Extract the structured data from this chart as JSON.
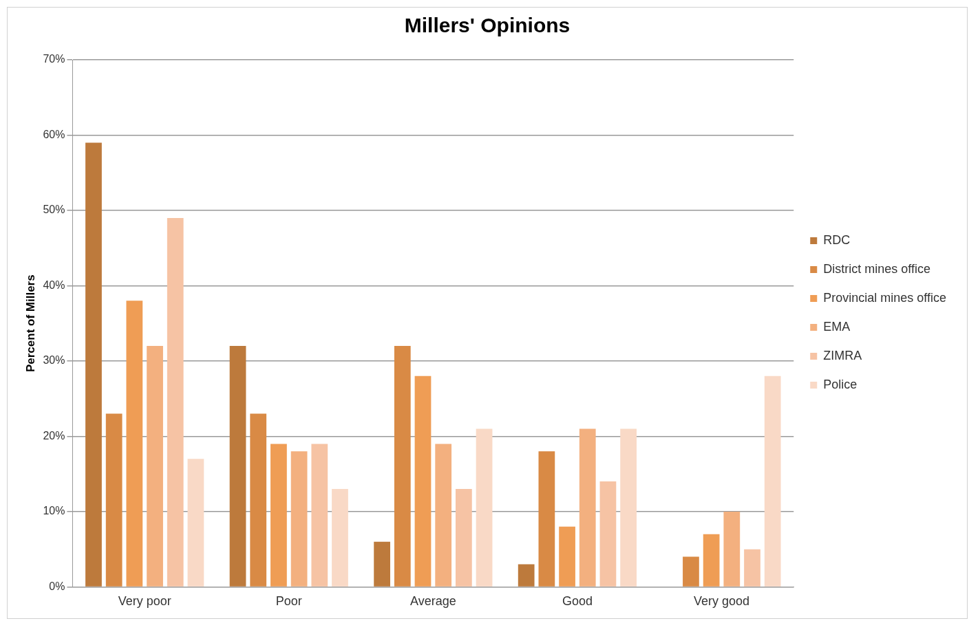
{
  "chart_data": {
    "type": "bar",
    "title": "Millers' Opinions",
    "ylabel": "Percent of Millers",
    "categories": [
      "Very poor",
      "Poor",
      "Average",
      "Good",
      "Very good"
    ],
    "series": [
      {
        "name": "RDC",
        "color": "#bd7a3c",
        "values": [
          59,
          32,
          6,
          3,
          0
        ]
      },
      {
        "name": "District mines office",
        "color": "#d98a45",
        "values": [
          23,
          23,
          32,
          18,
          4
        ]
      },
      {
        "name": "Provincial mines office",
        "color": "#ef9d55",
        "values": [
          38,
          19,
          28,
          8,
          7
        ]
      },
      {
        "name": "EMA",
        "color": "#f3b07f",
        "values": [
          32,
          18,
          19,
          21,
          10
        ]
      },
      {
        "name": "ZIMRA",
        "color": "#f6c3a4",
        "values": [
          49,
          19,
          13,
          14,
          5
        ]
      },
      {
        "name": "Police",
        "color": "#f9d9c6",
        "values": [
          17,
          13,
          21,
          21,
          28
        ]
      }
    ],
    "ylim": [
      0,
      70
    ],
    "yticks": [
      {
        "value": 0,
        "label": "0%"
      },
      {
        "value": 10,
        "label": "10%"
      },
      {
        "value": 20,
        "label": "20%"
      },
      {
        "value": 30,
        "label": "30%"
      },
      {
        "value": 40,
        "label": "40%"
      },
      {
        "value": 50,
        "label": "50%"
      },
      {
        "value": 60,
        "label": "60%"
      },
      {
        "value": 70,
        "label": "70%"
      }
    ],
    "grid": "y",
    "legend": "right"
  }
}
